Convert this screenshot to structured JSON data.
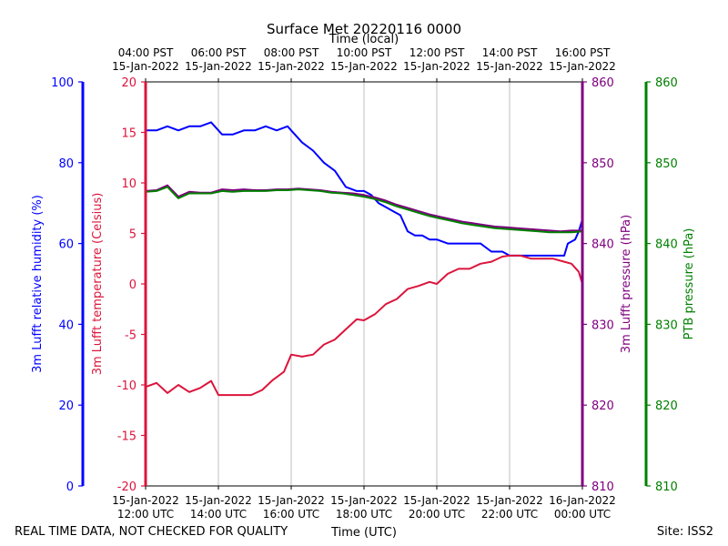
{
  "chart_data": {
    "type": "line",
    "title": "Surface Met 20220116 0000",
    "top_axis_label": "Time (local)",
    "xlabel": "Time (UTC)",
    "footer_left": "REAL TIME DATA, NOT CHECKED FOR QUALITY",
    "footer_right": "Site: ISS2",
    "x_hours_utc_range": [
      12,
      24
    ],
    "top_ticks": [
      {
        "line1": "04:00 PST",
        "line2": "15-Jan-2022"
      },
      {
        "line1": "06:00 PST",
        "line2": "15-Jan-2022"
      },
      {
        "line1": "08:00 PST",
        "line2": "15-Jan-2022"
      },
      {
        "line1": "10:00 PST",
        "line2": "15-Jan-2022"
      },
      {
        "line1": "12:00 PST",
        "line2": "15-Jan-2022"
      },
      {
        "line1": "14:00 PST",
        "line2": "15-Jan-2022"
      },
      {
        "line1": "16:00 PST",
        "line2": "15-Jan-2022"
      }
    ],
    "bottom_ticks": [
      {
        "line1": "15-Jan-2022",
        "line2": "12:00 UTC"
      },
      {
        "line1": "15-Jan-2022",
        "line2": "14:00 UTC"
      },
      {
        "line1": "15-Jan-2022",
        "line2": "16:00 UTC"
      },
      {
        "line1": "15-Jan-2022",
        "line2": "18:00 UTC"
      },
      {
        "line1": "15-Jan-2022",
        "line2": "20:00 UTC"
      },
      {
        "line1": "15-Jan-2022",
        "line2": "22:00 UTC"
      },
      {
        "line1": "16-Jan-2022",
        "line2": "00:00 UTC"
      }
    ],
    "axes": {
      "rh": {
        "label": "3m Lufft relative humidity (%)",
        "range": [
          0,
          100
        ],
        "ticks": [
          "0",
          "20",
          "40",
          "60",
          "80",
          "100"
        ],
        "color": "#0000ff"
      },
      "temp": {
        "label": "3m Lufft temperature (Celsius)",
        "range": [
          -20,
          20
        ],
        "ticks": [
          "-20",
          "-15",
          "-10",
          "-5",
          "0",
          "5",
          "10",
          "15",
          "20"
        ],
        "color": "#dc143c"
      },
      "pres": {
        "label": "3m Lufft pressure (hPa)",
        "range": [
          810,
          860
        ],
        "ticks": [
          "810",
          "820",
          "830",
          "840",
          "850",
          "860"
        ],
        "color": "#800080"
      },
      "ptb": {
        "label": "PTB pressure (hPa)",
        "range": [
          810,
          860
        ],
        "ticks": [
          "810",
          "820",
          "830",
          "840",
          "850",
          "860"
        ],
        "color": "#008000"
      }
    },
    "series": [
      {
        "name": "3m Lufft relative humidity",
        "axis": "rh",
        "color": "#0000ff",
        "x": [
          12.0,
          12.3,
          12.6,
          12.9,
          13.2,
          13.5,
          13.8,
          14.1,
          14.4,
          14.7,
          15.0,
          15.3,
          15.6,
          15.9,
          16.0,
          16.3,
          16.6,
          16.9,
          17.2,
          17.5,
          17.8,
          18.0,
          18.2,
          18.4,
          18.6,
          18.8,
          19.0,
          19.2,
          19.4,
          19.6,
          19.8,
          20.0,
          20.3,
          20.6,
          20.9,
          21.2,
          21.5,
          21.8,
          22.0,
          22.3,
          22.6,
          22.9,
          23.2,
          23.5,
          23.6,
          23.8,
          23.9,
          24.0
        ],
        "y": [
          88,
          88,
          89,
          88,
          89,
          89,
          90,
          87,
          87,
          88,
          88,
          89,
          88,
          89,
          88,
          85,
          83,
          80,
          78,
          74,
          73,
          73,
          72,
          70,
          69,
          68,
          67,
          63,
          62,
          62,
          61,
          61,
          60,
          60,
          60,
          60,
          58,
          58,
          57,
          57,
          57,
          57,
          57,
          57,
          60,
          61,
          63,
          66
        ]
      },
      {
        "name": "3m Lufft temperature",
        "axis": "temp",
        "color": "#dc143c",
        "x": [
          12.0,
          12.3,
          12.6,
          12.9,
          13.2,
          13.5,
          13.8,
          14.0,
          14.3,
          14.6,
          14.9,
          15.2,
          15.5,
          15.8,
          16.0,
          16.3,
          16.6,
          16.9,
          17.2,
          17.5,
          17.8,
          18.0,
          18.3,
          18.6,
          18.9,
          19.2,
          19.5,
          19.8,
          20.0,
          20.3,
          20.6,
          20.9,
          21.2,
          21.5,
          21.8,
          22.0,
          22.3,
          22.6,
          22.9,
          23.2,
          23.5,
          23.7,
          23.9,
          24.0
        ],
        "y": [
          -10.2,
          -9.8,
          -10.8,
          -10.0,
          -10.7,
          -10.3,
          -9.6,
          -11.0,
          -11.0,
          -11.0,
          -11.0,
          -10.5,
          -9.5,
          -8.7,
          -7.0,
          -7.2,
          -7.0,
          -6.0,
          -5.5,
          -4.5,
          -3.5,
          -3.6,
          -3.0,
          -2.0,
          -1.5,
          -0.5,
          -0.2,
          0.2,
          0.0,
          1.0,
          1.5,
          1.5,
          2.0,
          2.2,
          2.7,
          2.8,
          2.8,
          2.5,
          2.5,
          2.5,
          2.2,
          2.0,
          1.2,
          0.0
        ]
      },
      {
        "name": "3m Lufft pressure",
        "axis": "pres",
        "color": "#800080",
        "x": [
          12.0,
          12.3,
          12.6,
          12.9,
          13.2,
          13.5,
          13.8,
          14.1,
          14.4,
          14.7,
          15.0,
          15.3,
          15.6,
          15.9,
          16.2,
          16.5,
          16.8,
          17.1,
          17.4,
          17.7,
          18.0,
          18.3,
          18.6,
          18.9,
          19.2,
          19.5,
          19.8,
          20.1,
          20.4,
          20.7,
          21.0,
          21.3,
          21.6,
          21.9,
          22.2,
          22.5,
          22.8,
          23.1,
          23.4,
          23.7,
          24.0
        ],
        "y": [
          846.5,
          846.6,
          847.2,
          845.8,
          846.4,
          846.3,
          846.3,
          846.7,
          846.6,
          846.7,
          846.6,
          846.6,
          846.7,
          846.7,
          846.8,
          846.7,
          846.6,
          846.4,
          846.3,
          846.2,
          846.0,
          845.7,
          845.3,
          844.8,
          844.4,
          844.0,
          843.6,
          843.3,
          843.0,
          842.7,
          842.5,
          842.3,
          842.1,
          842.0,
          841.9,
          841.8,
          841.7,
          841.6,
          841.5,
          841.6,
          841.6
        ]
      },
      {
        "name": "PTB pressure",
        "axis": "ptb",
        "color": "#008000",
        "x": [
          12.0,
          12.3,
          12.6,
          12.9,
          13.2,
          13.5,
          13.8,
          14.1,
          14.4,
          14.7,
          15.0,
          15.3,
          15.6,
          15.9,
          16.2,
          16.5,
          16.8,
          17.1,
          17.4,
          17.7,
          18.0,
          18.3,
          18.6,
          18.9,
          19.2,
          19.5,
          19.8,
          20.1,
          20.4,
          20.7,
          21.0,
          21.3,
          21.6,
          21.9,
          22.2,
          22.5,
          22.8,
          23.1,
          23.4,
          23.7,
          24.0
        ],
        "y": [
          846.4,
          846.5,
          847.0,
          845.6,
          846.2,
          846.2,
          846.2,
          846.5,
          846.4,
          846.5,
          846.5,
          846.5,
          846.6,
          846.6,
          846.7,
          846.6,
          846.5,
          846.3,
          846.2,
          846.0,
          845.8,
          845.5,
          845.1,
          844.6,
          844.2,
          843.8,
          843.4,
          843.1,
          842.8,
          842.5,
          842.3,
          842.1,
          841.9,
          841.8,
          841.7,
          841.6,
          841.5,
          841.4,
          841.4,
          841.4,
          841.5
        ]
      }
    ]
  }
}
